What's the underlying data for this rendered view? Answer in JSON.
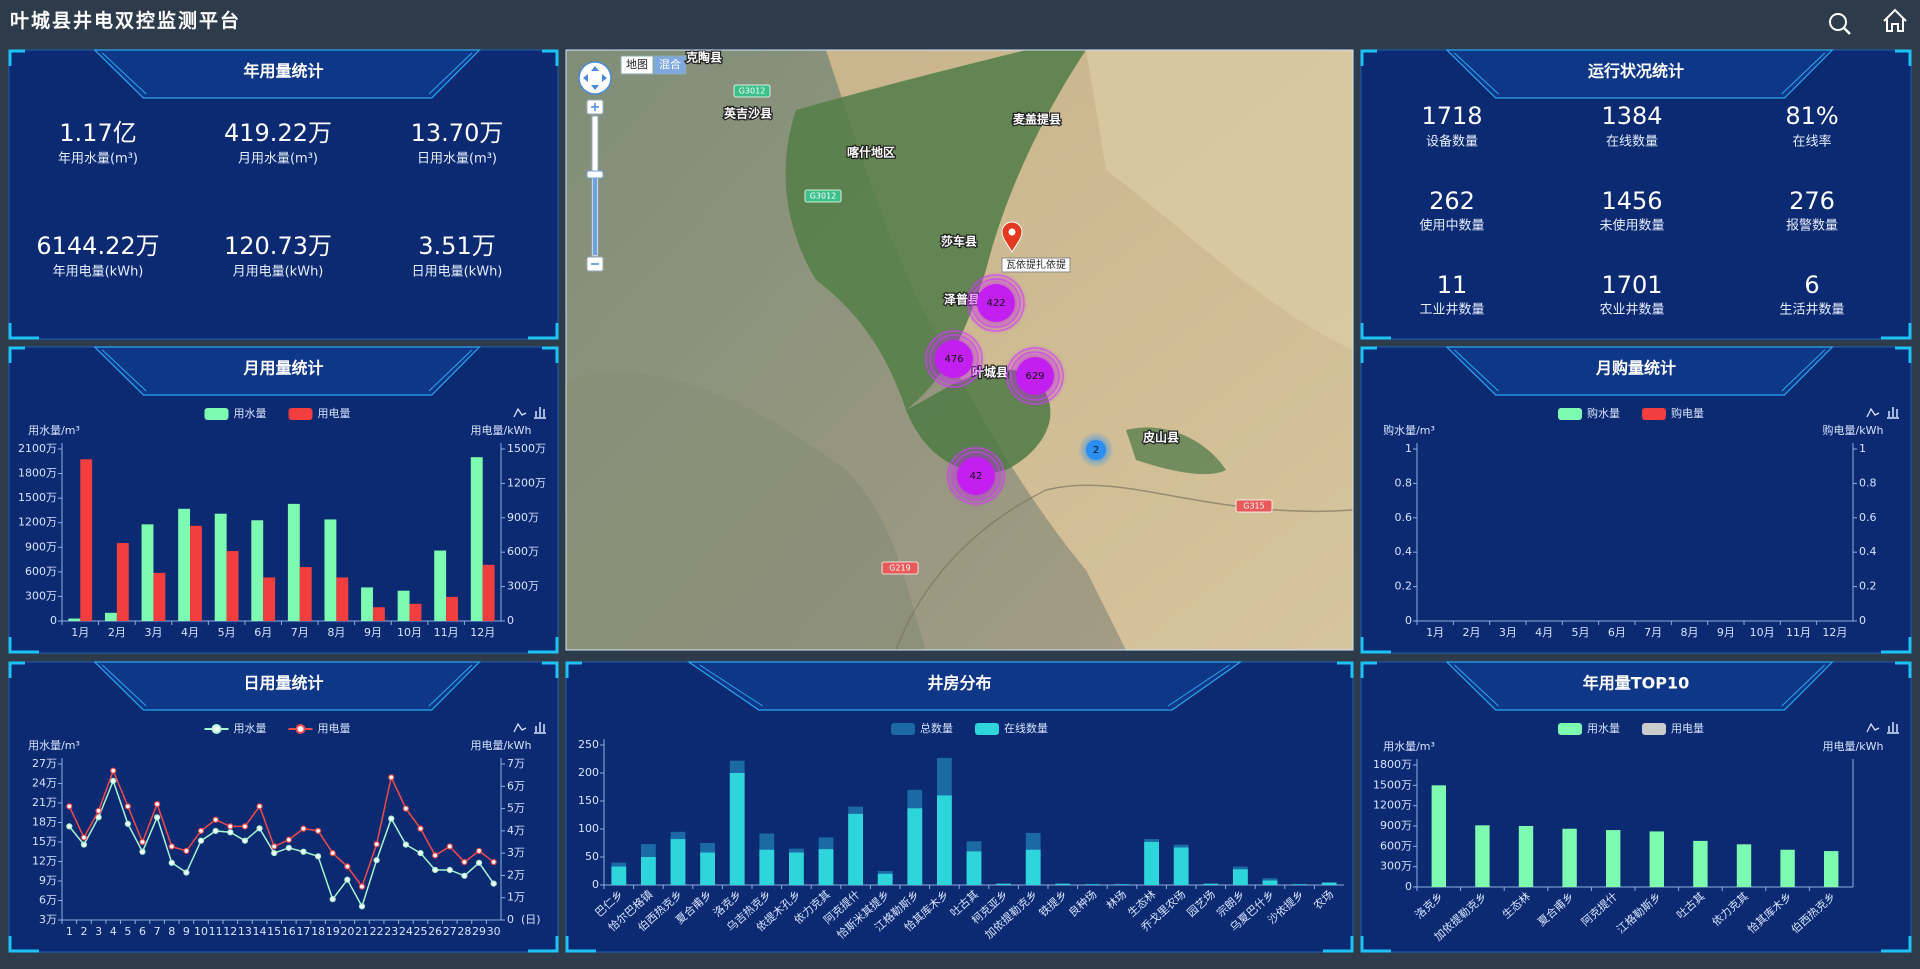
{
  "header": {
    "title": "叶城县井电双控监测平台"
  },
  "annual": {
    "title": "年用量统计",
    "stats": [
      {
        "value": "1.17亿",
        "label": "年用水量(m³)"
      },
      {
        "value": "419.22万",
        "label": "月用水量(m³)"
      },
      {
        "value": "13.70万",
        "label": "日用水量(m³)"
      },
      {
        "value": "6144.22万",
        "label": "年用电量(kWh)"
      },
      {
        "value": "120.73万",
        "label": "月用电量(kWh)"
      },
      {
        "value": "3.51万",
        "label": "日用电量(kWh)"
      }
    ]
  },
  "status": {
    "title": "运行状况统计",
    "stats": [
      {
        "value": "1718",
        "label": "设备数量"
      },
      {
        "value": "1384",
        "label": "在线数量"
      },
      {
        "value": "81%",
        "label": "在线率"
      },
      {
        "value": "262",
        "label": "使用中数量"
      },
      {
        "value": "1456",
        "label": "未使用数量"
      },
      {
        "value": "276",
        "label": "报警数量"
      },
      {
        "value": "11",
        "label": "工业井数量"
      },
      {
        "value": "1701",
        "label": "农业井数量"
      },
      {
        "value": "6",
        "label": "生活井数量"
      }
    ]
  },
  "map": {
    "buttons": [
      "地图",
      "混合"
    ],
    "places": [
      "克陶县",
      "英吉沙县",
      "喀什地区",
      "麦盖提县",
      "莎车县",
      "泽普县",
      "叶城县",
      "皮山县"
    ],
    "roads": [
      "G3012",
      "G3012",
      "G315",
      "G219"
    ],
    "marker": "瓦依提扎依提",
    "clusters": [
      422,
      476,
      629,
      42,
      2
    ]
  },
  "chart_data": [
    {
      "type": "bar",
      "title": "月用量统计",
      "categories": [
        "1月",
        "2月",
        "3月",
        "4月",
        "5月",
        "6月",
        "7月",
        "8月",
        "9月",
        "10月",
        "11月",
        "12月"
      ],
      "y_label": "用水量/m³",
      "y2_label": "用电量/kWh",
      "series": [
        {
          "name": "用水量",
          "color": "#7dfbb0",
          "values": [
            30,
            100,
            1180,
            1370,
            1310,
            1230,
            1430,
            1240,
            410,
            370,
            860,
            2000
          ]
        },
        {
          "name": "用电量",
          "color": "#f23e3e",
          "axis": "y2",
          "values": [
            1410,
            680,
            420,
            830,
            610,
            380,
            470,
            380,
            120,
            150,
            210,
            490
          ]
        }
      ],
      "ylim": [
        0,
        2100
      ],
      "yticks": [
        0,
        {
          "value": 300,
          "label": "300万"
        },
        {
          "value": 600,
          "label": "600万"
        },
        {
          "value": 900,
          "label": "900万"
        },
        {
          "value": 1200,
          "label": "1200万"
        },
        {
          "value": 1500,
          "label": "1500万"
        },
        {
          "value": 1800,
          "label": "1800万"
        },
        {
          "value": 2100,
          "label": "2100万"
        }
      ],
      "y2lim": [
        0,
        1500
      ],
      "y2ticks": [
        0,
        {
          "value": 300,
          "label": "300万"
        },
        {
          "value": 600,
          "label": "600万"
        },
        {
          "value": 900,
          "label": "900万"
        },
        {
          "value": 1200,
          "label": "1200万"
        },
        {
          "value": 1500,
          "label": "1500万"
        }
      ]
    },
    {
      "type": "bar",
      "title": "月购量统计",
      "categories": [
        "1月",
        "2月",
        "3月",
        "4月",
        "5月",
        "6月",
        "7月",
        "8月",
        "9月",
        "10月",
        "11月",
        "12月"
      ],
      "y_label": "购水量/m³",
      "y2_label": "购电量/kWh",
      "series": [
        {
          "name": "购水量",
          "color": "#7dfbb0",
          "values": [
            null,
            null,
            null,
            null,
            null,
            null,
            null,
            null,
            null,
            null,
            null,
            null
          ]
        },
        {
          "name": "购电量",
          "color": "#f23e3e",
          "axis": "y2",
          "values": [
            null,
            null,
            null,
            null,
            null,
            null,
            null,
            null,
            null,
            null,
            null,
            null
          ]
        }
      ],
      "ylim": [
        0,
        1
      ],
      "yticks": [
        0,
        0.2,
        0.4,
        0.6,
        0.8,
        1
      ],
      "y2lim": [
        0,
        1
      ],
      "y2ticks": [
        0,
        0.2,
        0.4,
        0.6,
        0.8,
        1
      ]
    },
    {
      "type": "line",
      "title": "日用量统计",
      "categories": [
        "1",
        "2",
        "3",
        "4",
        "5",
        "6",
        "7",
        "8",
        "9",
        "10",
        "11",
        "12",
        "13",
        "14",
        "15",
        "16",
        "17",
        "18",
        "19",
        "20",
        "21",
        "22",
        "23",
        "24",
        "25",
        "26",
        "27",
        "28",
        "29",
        "30"
      ],
      "x_label": "(日)",
      "y_label": "用水量/m³",
      "y2_label": "用电量/kWh",
      "series": [
        {
          "name": "用水量",
          "color": "#a8f5d0",
          "values": [
            17.4,
            14.6,
            18.8,
            24.4,
            17.8,
            13.5,
            18.8,
            11.8,
            10.3,
            15.2,
            16.7,
            16.5,
            15.2,
            17.1,
            13.3,
            14.1,
            13.5,
            12.8,
            6.2,
            9.2,
            5.1,
            12.2,
            18.6,
            14.6,
            13.3,
            10.7,
            10.7,
            9.8,
            11.8,
            8.6
          ]
        },
        {
          "name": "用电量",
          "color": "#f04a4a",
          "axis": "y2",
          "values": [
            5.1,
            3.7,
            4.9,
            6.7,
            5.1,
            3.5,
            5.2,
            3.3,
            3.1,
            4.0,
            4.5,
            4.2,
            4.2,
            5.1,
            3.3,
            3.6,
            4.1,
            4.0,
            3.0,
            2.4,
            1.5,
            3.4,
            6.4,
            5.0,
            4.1,
            2.9,
            3.3,
            2.6,
            3.1,
            2.6
          ]
        }
      ],
      "ylim": [
        3,
        27
      ],
      "yticks": [
        {
          "value": 3,
          "label": "3万"
        },
        {
          "value": 6,
          "label": "6万"
        },
        {
          "value": 9,
          "label": "9万"
        },
        {
          "value": 12,
          "label": "12万"
        },
        {
          "value": 15,
          "label": "15万"
        },
        {
          "value": 18,
          "label": "18万"
        },
        {
          "value": 21,
          "label": "21万"
        },
        {
          "value": 24,
          "label": "24万"
        },
        {
          "value": 27,
          "label": "27万"
        }
      ],
      "y2lim": [
        0,
        7
      ],
      "y2ticks": [
        0,
        {
          "value": 1,
          "label": "1万"
        },
        {
          "value": 2,
          "label": "2万"
        },
        {
          "value": 3,
          "label": "3万"
        },
        {
          "value": 4,
          "label": "4万"
        },
        {
          "value": 5,
          "label": "5万"
        },
        {
          "value": 6,
          "label": "6万"
        },
        {
          "value": 7,
          "label": "7万"
        }
      ]
    },
    {
      "type": "bar",
      "title": "井房分布",
      "bar_mode": "overlap",
      "categories": [
        "巴仁乡",
        "恰尔巴格镇",
        "伯西热克乡",
        "夏合甫乡",
        "洛克乡",
        "乌吉热克乡",
        "依提木孔乡",
        "依力克其",
        "阿克提什",
        "恰斯米其提乡",
        "江格勒斯乡",
        "恰其库木乡",
        "吐古其",
        "柯克亚乡",
        "加依提勒克乡",
        "铁提乡",
        "良种场",
        "林场",
        "生态林",
        "乔戈里农场",
        "园艺场",
        "宗朗乡",
        "乌夏巴什乡",
        "沙依提乡",
        "农场"
      ],
      "series": [
        {
          "name": "总数量",
          "color": "#1b6aa5",
          "values": [
            40,
            73,
            95,
            75,
            222,
            92,
            65,
            85,
            140,
            25,
            170,
            227,
            78,
            3,
            93,
            3,
            2,
            2,
            82,
            72,
            3,
            33,
            12,
            2,
            5
          ]
        },
        {
          "name": "在线数量",
          "color": "#2ed6dc",
          "values": [
            33,
            50,
            82,
            58,
            200,
            63,
            58,
            64,
            127,
            20,
            137,
            160,
            60,
            2,
            63,
            2,
            1,
            1,
            77,
            67,
            2,
            28,
            8,
            1,
            4
          ]
        }
      ],
      "ylim": [
        0,
        250
      ],
      "yticks": [
        0,
        50,
        100,
        150,
        200,
        250
      ]
    },
    {
      "type": "bar",
      "title": "年用量TOP10",
      "categories": [
        "洛克乡",
        "加依提勒克乡",
        "生态林",
        "夏合甫乡",
        "阿克提什",
        "江格勒斯乡",
        "吐古其",
        "依力克其",
        "恰其库木乡",
        "伯西热克乡"
      ],
      "y_label": "用水量/m³",
      "y2_label": "用电量/kWh",
      "series": [
        {
          "name": "用水量",
          "color": "#7dfbb0",
          "values": [
            1500,
            910,
            900,
            860,
            840,
            820,
            680,
            630,
            550,
            530
          ]
        },
        {
          "name": "用电量",
          "color": "#cccccc",
          "axis": "y2",
          "values": [
            null,
            null,
            null,
            null,
            null,
            null,
            null,
            null,
            null,
            null
          ]
        }
      ],
      "ylim": [
        0,
        1800
      ],
      "yticks": [
        0,
        {
          "value": 300,
          "label": "300万"
        },
        {
          "value": 600,
          "label": "600万"
        },
        {
          "value": 900,
          "label": "900万"
        },
        {
          "value": 1200,
          "label": "1200万"
        },
        {
          "value": 1500,
          "label": "1500万"
        },
        {
          "value": 1800,
          "label": "1800万"
        }
      ]
    }
  ]
}
